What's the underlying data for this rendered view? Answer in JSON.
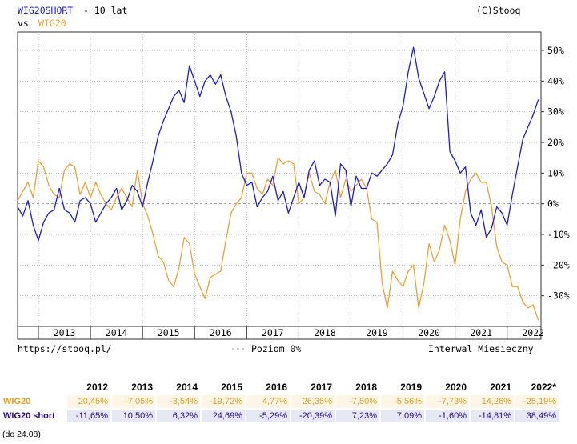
{
  "header": {
    "series1_name": "WIG20SHORT",
    "title_suffix": "- 10 lat",
    "vs_label": "vs",
    "series2_name": "WIG20",
    "copyright": "(C)Stooq"
  },
  "footer": {
    "url": "https://stooq.pl/",
    "level_label": "Poziom 0%",
    "interval": "Interwal Miesieczny"
  },
  "colors": {
    "wig20": "#f0a030",
    "wig20short": "#1a1adc",
    "zero_line": "#999999",
    "grid": "#bbbbbb"
  },
  "chart_data": {
    "type": "line",
    "x_ticks": [
      "2013",
      "2014",
      "2015",
      "2016",
      "2017",
      "2018",
      "2019",
      "2020",
      "2021",
      "2022"
    ],
    "y_ticks": [
      "50%",
      "40%",
      "30%",
      "20%",
      "10%",
      "0%",
      "-10%",
      "-20%",
      "-30%"
    ],
    "ylim": [
      -40,
      56
    ],
    "xlim": [
      2012.6,
      2022.65
    ],
    "series": [
      {
        "name": "WIG20SHORT",
        "x": [
          2012.6,
          2012.7,
          2012.8,
          2012.9,
          2013.0,
          2013.1,
          2013.2,
          2013.3,
          2013.4,
          2013.5,
          2013.6,
          2013.7,
          2013.8,
          2013.9,
          2014.0,
          2014.1,
          2014.2,
          2014.3,
          2014.4,
          2014.5,
          2014.6,
          2014.7,
          2014.8,
          2014.9,
          2015.0,
          2015.1,
          2015.2,
          2015.3,
          2015.4,
          2015.5,
          2015.6,
          2015.7,
          2015.8,
          2015.9,
          2016.0,
          2016.1,
          2016.2,
          2016.3,
          2016.4,
          2016.5,
          2016.6,
          2016.7,
          2016.8,
          2016.9,
          2017.0,
          2017.1,
          2017.2,
          2017.3,
          2017.4,
          2017.5,
          2017.6,
          2017.7,
          2017.8,
          2017.9,
          2018.0,
          2018.1,
          2018.2,
          2018.3,
          2018.4,
          2018.5,
          2018.6,
          2018.7,
          2018.8,
          2018.9,
          2019.0,
          2019.1,
          2019.2,
          2019.3,
          2019.4,
          2019.5,
          2019.6,
          2019.7,
          2019.8,
          2019.9,
          2020.0,
          2020.1,
          2020.2,
          2020.3,
          2020.4,
          2020.5,
          2020.6,
          2020.7,
          2020.8,
          2020.9,
          2021.0,
          2021.1,
          2021.2,
          2021.3,
          2021.4,
          2021.5,
          2021.6,
          2021.7,
          2021.8,
          2021.9,
          2022.0,
          2022.1,
          2022.2,
          2022.3,
          2022.4,
          2022.5,
          2022.6
        ],
        "values": [
          -1,
          -4,
          1,
          -7,
          -12,
          -6,
          -3,
          -2,
          5,
          -2,
          -3,
          -6,
          1,
          2,
          0,
          -6,
          -3,
          0,
          2,
          5,
          -2,
          1,
          6,
          4,
          -1,
          7,
          14,
          22,
          27,
          31,
          35,
          37,
          33,
          45,
          40,
          35,
          40,
          42,
          39,
          42,
          35,
          30,
          22,
          10,
          6,
          7,
          -1,
          2,
          4,
          9,
          1,
          4,
          -3,
          2,
          7,
          2,
          11,
          14,
          6,
          8,
          7,
          -4,
          13,
          11,
          -1,
          9,
          5,
          5,
          10,
          9,
          11,
          13,
          16,
          26,
          32,
          43,
          51,
          41,
          36,
          31,
          35,
          40,
          43,
          17,
          14,
          10,
          12,
          -3,
          -7,
          -2,
          -11,
          -8,
          -1,
          -3,
          -7,
          3,
          12,
          21,
          25,
          29,
          34
        ]
      },
      {
        "name": "WIG20",
        "x": [
          2012.6,
          2012.7,
          2012.8,
          2012.9,
          2013.0,
          2013.1,
          2013.2,
          2013.3,
          2013.4,
          2013.5,
          2013.6,
          2013.7,
          2013.8,
          2013.9,
          2014.0,
          2014.1,
          2014.2,
          2014.3,
          2014.4,
          2014.5,
          2014.6,
          2014.7,
          2014.8,
          2014.9,
          2015.0,
          2015.1,
          2015.2,
          2015.3,
          2015.4,
          2015.5,
          2015.6,
          2015.7,
          2015.8,
          2015.9,
          2016.0,
          2016.1,
          2016.2,
          2016.3,
          2016.4,
          2016.5,
          2016.6,
          2016.7,
          2016.8,
          2016.9,
          2017.0,
          2017.1,
          2017.2,
          2017.3,
          2017.4,
          2017.5,
          2017.6,
          2017.7,
          2017.8,
          2017.9,
          2018.0,
          2018.1,
          2018.2,
          2018.3,
          2018.4,
          2018.5,
          2018.6,
          2018.7,
          2018.8,
          2018.9,
          2019.0,
          2019.1,
          2019.2,
          2019.3,
          2019.4,
          2019.5,
          2019.6,
          2019.7,
          2019.8,
          2019.9,
          2020.0,
          2020.1,
          2020.2,
          2020.3,
          2020.4,
          2020.5,
          2020.6,
          2020.7,
          2020.8,
          2020.9,
          2021.0,
          2021.1,
          2021.2,
          2021.3,
          2021.4,
          2021.5,
          2021.6,
          2021.7,
          2021.8,
          2021.9,
          2022.0,
          2022.1,
          2022.2,
          2022.3,
          2022.4,
          2022.5,
          2022.6
        ],
        "values": [
          1,
          4,
          7,
          2,
          14,
          12,
          6,
          3,
          2,
          11,
          13,
          12,
          3,
          7,
          2,
          7,
          3,
          0,
          -2,
          2,
          5,
          2,
          -1,
          11,
          0,
          -4,
          -10,
          -17,
          -19,
          -25,
          -27,
          -21,
          -11,
          -13,
          -23,
          -27,
          -31,
          -24,
          -23,
          -22,
          -12,
          -3,
          0,
          2,
          10,
          10,
          5,
          3,
          8,
          6,
          15,
          13,
          14,
          13,
          0,
          2,
          10,
          4,
          3,
          0,
          7,
          11,
          2,
          8,
          4,
          6,
          8,
          5,
          -5,
          -6,
          -26,
          -34,
          -22,
          -25,
          -27,
          -22,
          -20,
          -34,
          -26,
          -13,
          -19,
          -15,
          -7,
          -12,
          -20,
          -5,
          4,
          8,
          10,
          7,
          7,
          -1,
          -14,
          -19,
          -20,
          -27,
          -27,
          -32,
          -34,
          -33,
          -38
        ]
      }
    ]
  },
  "returns_table": {
    "years": [
      "2012",
      "2013",
      "2014",
      "2015",
      "2016",
      "2017",
      "2018",
      "2019",
      "2020",
      "2021",
      "2022*"
    ],
    "rows": [
      {
        "name": "WIG20",
        "values": [
          "20,45%",
          "-7,05%",
          "-3,54%",
          "-19,72%",
          "4,77%",
          "26,35%",
          "-7,50%",
          "-5,56%",
          "-7,73%",
          "14,26%",
          "-25,19%"
        ]
      },
      {
        "name": "WIG20 short",
        "values": [
          "-11,65%",
          "10,50%",
          "6,32%",
          "24,69%",
          "-5,29%",
          "-20,39%",
          "7,23%",
          "7,09%",
          "-1,60%",
          "-14,81%",
          "38,49%"
        ]
      }
    ],
    "note": "(do 24.08)"
  }
}
